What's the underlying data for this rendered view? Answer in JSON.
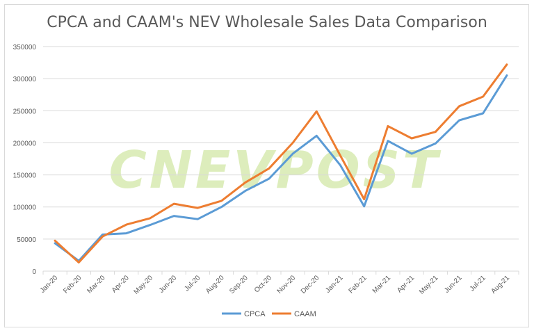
{
  "chart_data": {
    "type": "line",
    "title": "CPCA and CAAM's NEV Wholesale Sales Data Comparison",
    "watermark": "CNEVPOST",
    "categories": [
      "Jan-20",
      "Feb-20",
      "Mar-20",
      "Apr-20",
      "May-20",
      "Jun-20",
      "Jul-20",
      "Aug-20",
      "Sep-20",
      "Oct-20",
      "Nov-20",
      "Dec-20",
      "Jan-21",
      "Feb-21",
      "Mar-21",
      "Apr-21",
      "May-21",
      "Jun-21",
      "Jul-21",
      "Aug-21"
    ],
    "series": [
      {
        "name": "CPCA",
        "color": "#5b9bd5",
        "values": [
          43500,
          16000,
          57000,
          59000,
          72000,
          86000,
          81000,
          100000,
          125000,
          144000,
          183000,
          211000,
          165000,
          101000,
          203000,
          183000,
          199000,
          235000,
          246000,
          305000
        ]
      },
      {
        "name": "CAAM",
        "color": "#ed7d31",
        "values": [
          47500,
          13500,
          54000,
          72500,
          82500,
          105000,
          98500,
          109500,
          138000,
          160000,
          200000,
          249000,
          180000,
          112000,
          226000,
          207000,
          217000,
          257000,
          272000,
          322000
        ]
      }
    ],
    "ylim": [
      0,
      350000
    ],
    "yticks": [
      0,
      50000,
      100000,
      150000,
      200000,
      250000,
      300000,
      350000
    ],
    "grid": true,
    "legend_position": "bottom"
  }
}
